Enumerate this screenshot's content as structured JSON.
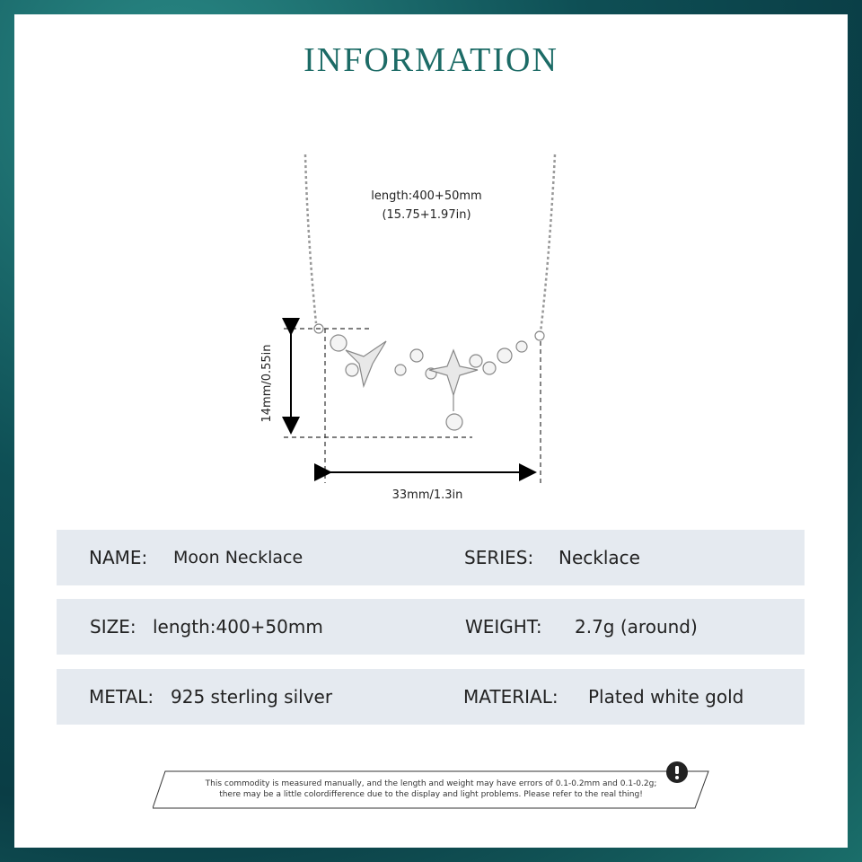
{
  "title": "INFORMATION",
  "diagram": {
    "length_line1": "length:400+50mm",
    "length_line2": "(15.75+1.97in)",
    "height_label": "14mm/0.55in",
    "width_label": "33mm/1.3in"
  },
  "specs": [
    {
      "label": "NAME:",
      "value": "Moon Necklace",
      "label2": "SERIES:",
      "value2": "Necklace"
    },
    {
      "label": "SIZE:",
      "value": "length:400+50mm",
      "label2": "WEIGHT:",
      "value2": "2.7g (around)"
    },
    {
      "label": "METAL:",
      "value": "925 sterling silver",
      "label2": "MATERIAL:",
      "value2": "Plated white gold"
    }
  ],
  "notice": {
    "line1": "This commodity is measured manually, and the length and weight may have errors of 0.1-0.2mm and 0.1-0.2g;",
    "line2": "there may be a little colordifference due to the display and light problems. Please refer to the real thing!",
    "icon": "exclamation-icon"
  },
  "colors": {
    "title": "#1c6b66",
    "row_bg": "#e5eaf0",
    "border": "#0e4f55"
  }
}
